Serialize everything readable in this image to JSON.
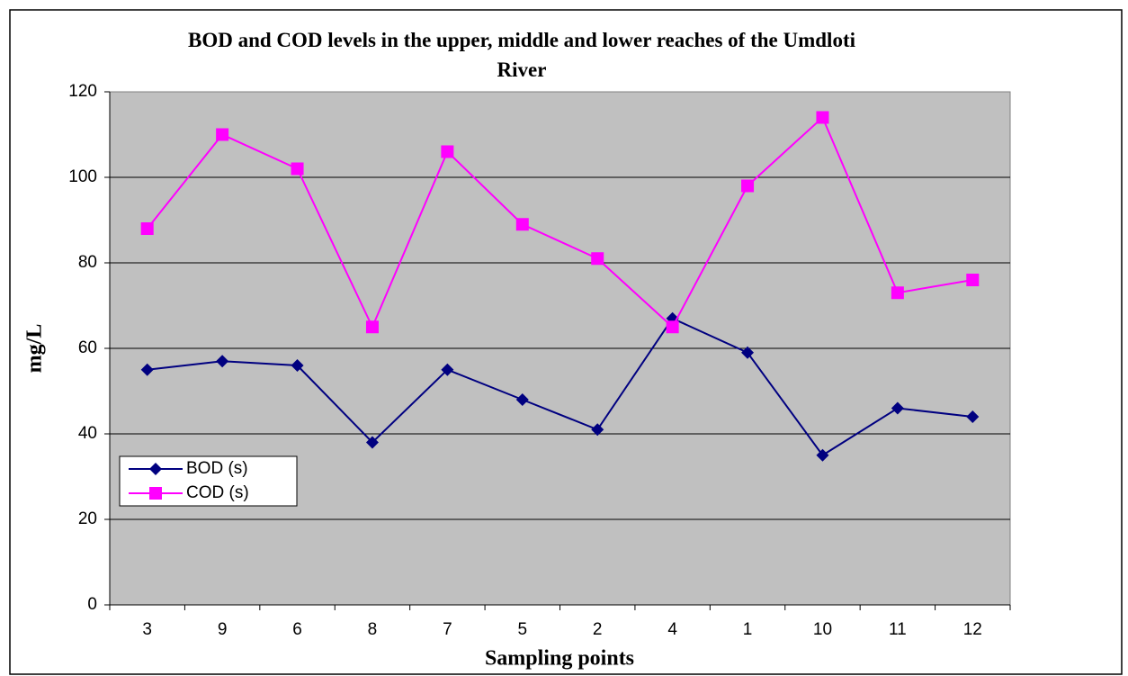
{
  "chart_data": {
    "type": "line",
    "title": "BOD and COD levels in the upper, middle and lower reaches of the Umdloti River",
    "x_label": "Sampling points",
    "y_label": "mg/L",
    "categories": [
      "3",
      "9",
      "6",
      "8",
      "7",
      "5",
      "2",
      "4",
      "1",
      "10",
      "11",
      "12"
    ],
    "series": [
      {
        "name": "BOD (s)",
        "color": "#000080",
        "marker": "diamond",
        "values": [
          55,
          57,
          56,
          38,
          55,
          48,
          41,
          67,
          59,
          35,
          46,
          44
        ]
      },
      {
        "name": "COD (s)",
        "color": "#ff00ff",
        "marker": "square",
        "values": [
          88,
          110,
          102,
          65,
          106,
          89,
          81,
          65,
          98,
          114,
          73,
          76
        ]
      }
    ],
    "ylim": [
      0,
      120
    ],
    "yticks": [
      0,
      20,
      40,
      60,
      80,
      100,
      120
    ],
    "grid": true,
    "legend": "lower left"
  }
}
